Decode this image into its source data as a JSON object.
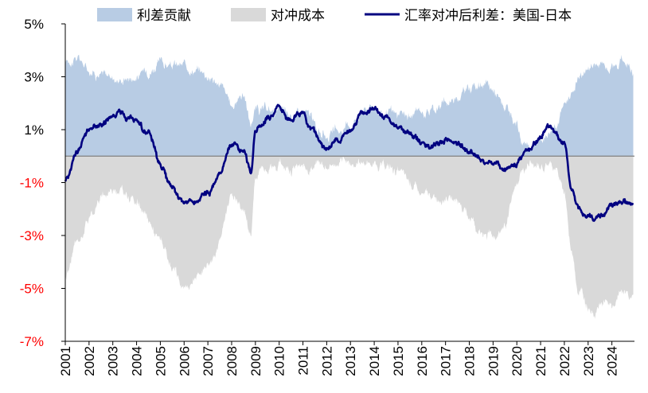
{
  "chart_data": {
    "type": "area",
    "title": "",
    "xlabel": "",
    "ylabel": "",
    "ylim": [
      -7,
      5
    ],
    "xlim": [
      2001,
      2024.95
    ],
    "y_ticks": [
      {
        "value": 5,
        "label": "5%",
        "color": "#000000"
      },
      {
        "value": 3,
        "label": "3%",
        "color": "#000000"
      },
      {
        "value": 1,
        "label": "1%",
        "color": "#000000"
      },
      {
        "value": -1,
        "label": "-1%",
        "color": "#ff0000"
      },
      {
        "value": -3,
        "label": "-3%",
        "color": "#ff0000"
      },
      {
        "value": -5,
        "label": "-5%",
        "color": "#ff0000"
      },
      {
        "value": -7,
        "label": "-7%",
        "color": "#ff0000"
      }
    ],
    "x_ticks": [
      "2001",
      "2002",
      "2003",
      "2004",
      "2005",
      "2006",
      "2007",
      "2008",
      "2009",
      "2010",
      "2011",
      "2012",
      "2013",
      "2014",
      "2015",
      "2016",
      "2017",
      "2018",
      "2019",
      "2020",
      "2021",
      "2022",
      "2023",
      "2024"
    ],
    "legend": [
      {
        "name": "利差贡献",
        "kind": "area",
        "color": "#b8cce4"
      },
      {
        "name": "对冲成本",
        "kind": "area",
        "color": "#d9d9d9"
      },
      {
        "name": "汇率对冲后利差：美国-日本",
        "kind": "line",
        "color": "#000080"
      }
    ],
    "x": [
      2001.0,
      2001.5,
      2002.0,
      2002.5,
      2003.0,
      2003.3,
      2003.6,
      2004.0,
      2004.5,
      2005.0,
      2005.5,
      2006.0,
      2006.5,
      2007.0,
      2007.5,
      2008.0,
      2008.5,
      2008.8,
      2009.0,
      2009.3,
      2009.5,
      2010.0,
      2010.5,
      2011.0,
      2011.3,
      2011.6,
      2012.0,
      2012.5,
      2013.0,
      2013.5,
      2014.0,
      2014.5,
      2015.0,
      2015.5,
      2016.0,
      2016.5,
      2017.0,
      2017.5,
      2018.0,
      2018.5,
      2019.0,
      2019.5,
      2020.0,
      2020.2,
      2020.5,
      2021.0,
      2021.3,
      2021.6,
      2022.0,
      2022.3,
      2022.6,
      2023.0,
      2023.3,
      2023.6,
      2024.0,
      2024.5,
      2024.9
    ],
    "series": [
      {
        "name": "利差贡献",
        "values": [
          3.6,
          3.7,
          3.3,
          3.1,
          3.0,
          2.9,
          3.0,
          3.0,
          3.3,
          3.5,
          3.4,
          3.4,
          3.3,
          3.1,
          2.7,
          1.9,
          2.4,
          1.2,
          1.8,
          1.7,
          1.7,
          1.7,
          1.5,
          1.7,
          1.5,
          1.0,
          0.8,
          0.9,
          1.2,
          1.8,
          1.9,
          1.6,
          1.5,
          1.5,
          1.7,
          1.8,
          2.0,
          2.3,
          2.6,
          2.7,
          2.5,
          1.8,
          1.0,
          0.5,
          0.4,
          0.6,
          0.9,
          1.3,
          1.8,
          2.4,
          3.0,
          3.3,
          3.5,
          3.5,
          3.5,
          3.6,
          3.4
        ]
      },
      {
        "name": "对冲成本",
        "values": [
          -4.5,
          -3.3,
          -2.3,
          -1.6,
          -1.2,
          -1.2,
          -1.5,
          -1.7,
          -2.5,
          -3.2,
          -4.4,
          -5.0,
          -4.6,
          -4.0,
          -3.2,
          -1.4,
          -2.0,
          -3.0,
          -0.8,
          -0.4,
          -0.3,
          -0.3,
          -0.4,
          -0.5,
          -0.4,
          -0.3,
          -0.4,
          -0.3,
          -0.3,
          -0.2,
          -0.3,
          -0.4,
          -0.6,
          -1.0,
          -1.5,
          -1.6,
          -1.5,
          -1.7,
          -2.3,
          -2.9,
          -3.0,
          -2.6,
          -1.2,
          -0.6,
          -0.3,
          -0.4,
          -0.3,
          -0.4,
          -1.4,
          -3.6,
          -5.0,
          -5.6,
          -5.8,
          -5.5,
          -5.7,
          -5.2,
          -5.3
        ]
      },
      {
        "name": "汇率对冲后利差：美国-日本",
        "values": [
          -0.9,
          0.2,
          1.0,
          1.2,
          1.5,
          1.7,
          1.5,
          1.3,
          0.8,
          -0.4,
          -1.2,
          -1.8,
          -1.7,
          -1.4,
          -0.8,
          0.5,
          0.3,
          -0.6,
          1.0,
          1.2,
          1.4,
          1.8,
          1.3,
          1.7,
          1.1,
          0.7,
          0.2,
          0.6,
          1.0,
          1.5,
          1.8,
          1.5,
          1.1,
          0.8,
          0.5,
          0.4,
          0.6,
          0.5,
          0.2,
          -0.1,
          -0.3,
          -0.5,
          -0.3,
          0.0,
          0.3,
          0.7,
          1.1,
          0.9,
          0.5,
          -1.3,
          -2.0,
          -2.2,
          -2.4,
          -2.2,
          -1.9,
          -1.8,
          -1.9
        ]
      }
    ]
  }
}
